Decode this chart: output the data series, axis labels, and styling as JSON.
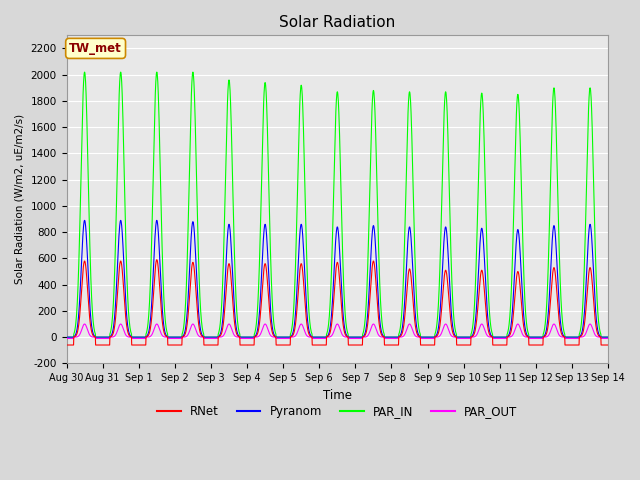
{
  "title": "Solar Radiation",
  "ylabel": "Solar Radiation (W/m2, uE/m2/s)",
  "xlabel": "Time",
  "ylim": [
    -200,
    2300
  ],
  "yticks": [
    -200,
    0,
    200,
    400,
    600,
    800,
    1000,
    1200,
    1400,
    1600,
    1800,
    2000,
    2200
  ],
  "colors": {
    "RNet": "#ff0000",
    "Pyranom": "#0000ff",
    "PAR_IN": "#00ff00",
    "PAR_OUT": "#ff00ff"
  },
  "legend_label": "TW_met",
  "bg_color": "#e8e8e8",
  "num_days": 15,
  "day_peaks": {
    "PAR_IN": [
      2020,
      2020,
      2020,
      2020,
      1960,
      1940,
      1920,
      1870,
      1880,
      1870,
      1870,
      1860,
      1850,
      1900,
      1900
    ],
    "Pyranom": [
      890,
      890,
      890,
      880,
      860,
      860,
      860,
      840,
      850,
      840,
      840,
      830,
      820,
      850,
      860
    ],
    "RNet": [
      580,
      580,
      590,
      570,
      560,
      560,
      560,
      570,
      580,
      520,
      510,
      510,
      500,
      530,
      530
    ],
    "PAR_OUT": [
      100,
      100,
      100,
      100,
      100,
      100,
      100,
      100,
      100,
      100,
      100,
      100,
      100,
      100,
      100
    ]
  },
  "night_val": {
    "RNet": -60,
    "Pyranom": 0,
    "PAR_IN": 0,
    "PAR_OUT": -10
  },
  "tick_labels": [
    "Aug 30",
    "Aug 31",
    "Sep 1",
    "Sep 2",
    "Sep 3",
    "Sep 4",
    "Sep 5",
    "Sep 6",
    "Sep 7",
    "Sep 8",
    "Sep 9",
    "Sep 10",
    "Sep 11",
    "Sep 12",
    "Sep 13",
    "Sep 14"
  ]
}
